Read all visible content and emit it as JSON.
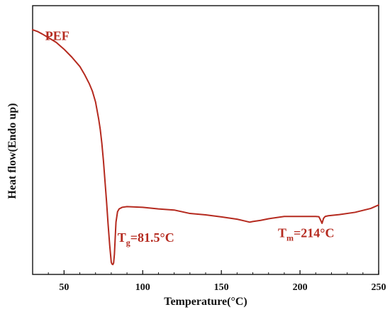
{
  "chart_data": {
    "type": "line",
    "title": "",
    "xlabel": "Temperature(°C)",
    "ylabel": "Heat flow(Endo up)",
    "xlim": [
      30,
      250
    ],
    "xticks": [
      50,
      100,
      150,
      200,
      250
    ],
    "y_tick_labels_shown": false,
    "ylim": [
      0,
      100
    ],
    "grid": false,
    "legend": "none",
    "series": [
      {
        "name": "PEF",
        "color": "#b52a1f",
        "x": [
          30,
          33,
          36,
          40,
          45,
          50,
          55,
          60,
          63,
          66,
          68,
          70,
          72,
          73,
          74,
          75,
          76,
          77,
          78,
          79,
          80,
          80.5,
          81,
          81.5,
          82,
          82.5,
          83,
          84,
          85,
          87,
          90,
          100,
          110,
          120,
          130,
          140,
          150,
          160,
          165,
          168,
          170,
          175,
          180,
          190,
          200,
          210,
          212,
          213,
          214,
          215,
          216,
          218,
          225,
          235,
          245,
          250
        ],
        "y": [
          100,
          99.3,
          98.2,
          96.6,
          94.5,
          91.5,
          88,
          84,
          80.5,
          76.5,
          73.2,
          68.5,
          61,
          56.5,
          50.5,
          43,
          34,
          25,
          15,
          6,
          -1.5,
          -2.3,
          -2.5,
          -1.8,
          2,
          9,
          16,
          20.6,
          21.8,
          22.5,
          22.8,
          22.5,
          21.8,
          21.3,
          19.8,
          19.2,
          18.3,
          17.3,
          16.5,
          16,
          16.3,
          16.8,
          17.5,
          18.5,
          18.5,
          18.5,
          18.4,
          17,
          15.5,
          17.7,
          18.5,
          18.8,
          19.3,
          20.3,
          22,
          23.5
        ]
      }
    ],
    "annotations": [
      {
        "text": "PEF",
        "x": 38,
        "y": 95.5
      },
      {
        "text_main": "T",
        "text_sub": "g",
        "text_tail": "=81.5°C",
        "x": 84,
        "y": 7.5
      },
      {
        "text_main": "T",
        "text_sub": "m",
        "text_tail": "=214°C",
        "x": 186,
        "y": 9.5
      }
    ]
  }
}
